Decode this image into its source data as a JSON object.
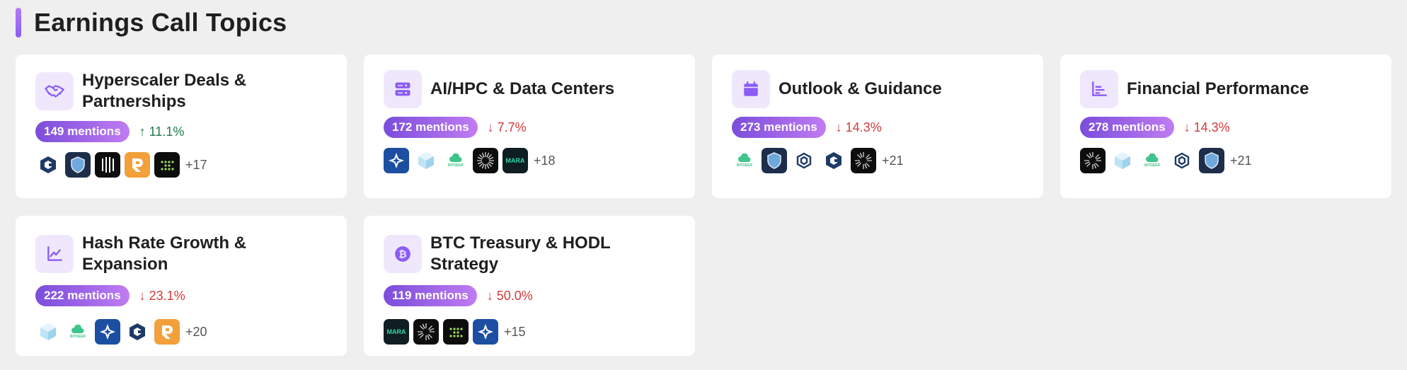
{
  "page": {
    "title": "Earnings Call Topics"
  },
  "topics": [
    {
      "title": "Hyperscaler Deals & Partnerships",
      "icon": "handshake-icon",
      "mentions": "149 mentions",
      "change": "↑ 11.1%",
      "direction": "up",
      "logos": [
        "hexagon-c-logo",
        "shield-logo",
        "grid-dots-logo",
        "r-logo",
        "green-dots-logo"
      ],
      "more": "+17"
    },
    {
      "title": "AI/HPC & Data Centers",
      "icon": "server-icon",
      "mentions": "172 mentions",
      "change": "↓ 7.7%",
      "direction": "down",
      "logos": [
        "star-logo",
        "cube-logo",
        "bitdeer-logo",
        "burst-logo",
        "mara-logo"
      ],
      "more": "+18",
      "logo_texts": {
        "bitdeer": "BITDEER",
        "mara": "MARA"
      }
    },
    {
      "title": "Outlook & Guidance",
      "icon": "calendar-icon",
      "mentions": "273 mentions",
      "change": "↓ 14.3%",
      "direction": "down",
      "logos": [
        "bitdeer-logo",
        "shield-logo",
        "outline-hex-logo",
        "hexagon-c-logo",
        "burst-logo"
      ],
      "more": "+21"
    },
    {
      "title": "Financial Performance",
      "icon": "bar-chart-icon",
      "mentions": "278 mentions",
      "change": "↓ 14.3%",
      "direction": "down",
      "logos": [
        "burst-logo",
        "cube-logo",
        "bitdeer-logo",
        "outline-hex-logo",
        "shield-logo"
      ],
      "more": "+21"
    },
    {
      "title": "Hash Rate Growth & Expansion",
      "icon": "line-chart-icon",
      "mentions": "222 mentions",
      "change": "↓ 23.1%",
      "direction": "down",
      "logos": [
        "cube-logo",
        "bitdeer-logo",
        "star-logo",
        "hexagon-c-logo",
        "r-logo"
      ],
      "more": "+20"
    },
    {
      "title": "BTC Treasury & HODL Strategy",
      "icon": "bitcoin-icon",
      "mentions": "119 mentions",
      "change": "↓ 50.0%",
      "direction": "down",
      "logos": [
        "mara-logo",
        "burst-logo",
        "green-dots-logo",
        "star-logo"
      ],
      "more": "+15"
    }
  ],
  "colors": {
    "accent": "#8b5cf6",
    "up": "#1f7a4a",
    "down": "#d33a3a",
    "icon_bg": "#efe8fd"
  }
}
